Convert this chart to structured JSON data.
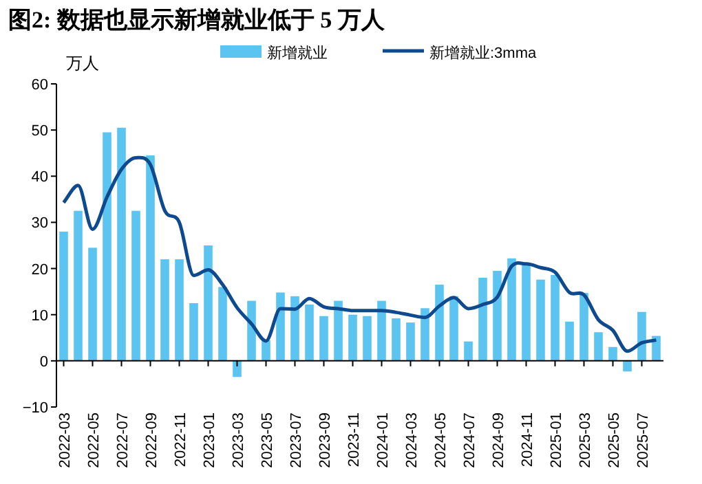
{
  "chart_data": {
    "type": "bar",
    "title": "图2:  数据也显示新增就业低于 5 万人",
    "ylabel": "万人",
    "categories": [
      "2022-03",
      null,
      "2022-05",
      null,
      "2022-07",
      null,
      "2022-09",
      null,
      "2022-11",
      null,
      "2023-01",
      null,
      "2023-03",
      null,
      "2023-05",
      null,
      "2023-07",
      null,
      "2023-09",
      null,
      "2023-11",
      null,
      "2024-01",
      null,
      "2024-03",
      null,
      "2024-05",
      null,
      "2024-07",
      null,
      "2024-09",
      null,
      "2024-11",
      null,
      "2025-01",
      null,
      "2025-03",
      null,
      "2025-05",
      null,
      "2025-07",
      null
    ],
    "series": [
      {
        "name": "新增就业",
        "color": "#5bc4f1",
        "values": [
          28,
          32.5,
          24.5,
          49.5,
          50.5,
          32.5,
          44.5,
          22,
          22,
          12.5,
          25,
          16,
          -3.5,
          13,
          4.5,
          14.8,
          14,
          12.2,
          9.7,
          13,
          10,
          9.7,
          13,
          9.2,
          8.3,
          11.4,
          16.5,
          14,
          4.2,
          18,
          19.5,
          22.2,
          21,
          17.6,
          18.6,
          8.5,
          14.7,
          6.2,
          3,
          -2.3,
          10.6,
          5.4
        ]
      },
      {
        "name": "新增就业:3mma",
        "type": "line",
        "color": "#0f4a8f",
        "values": [
          34.3,
          38,
          28.5,
          35.5,
          41.5,
          44,
          42.5,
          32.5,
          30,
          18.5,
          19.7,
          16.5,
          11.5,
          8,
          4.3,
          11.3,
          11.2,
          13.5,
          11.7,
          11.3,
          10.9,
          10.9,
          10.9,
          10.5,
          9.9,
          9.4,
          11.9,
          13.7,
          11.3,
          12.2,
          13.8,
          20.5,
          21,
          20.2,
          19.2,
          14.8,
          14.3,
          8.9,
          6.6,
          2.1,
          3.9,
          4.5
        ]
      }
    ],
    "ylim": [
      -10,
      60
    ],
    "yticks": [
      -10,
      0,
      10,
      20,
      30,
      40,
      50,
      60
    ],
    "legend": "top"
  }
}
